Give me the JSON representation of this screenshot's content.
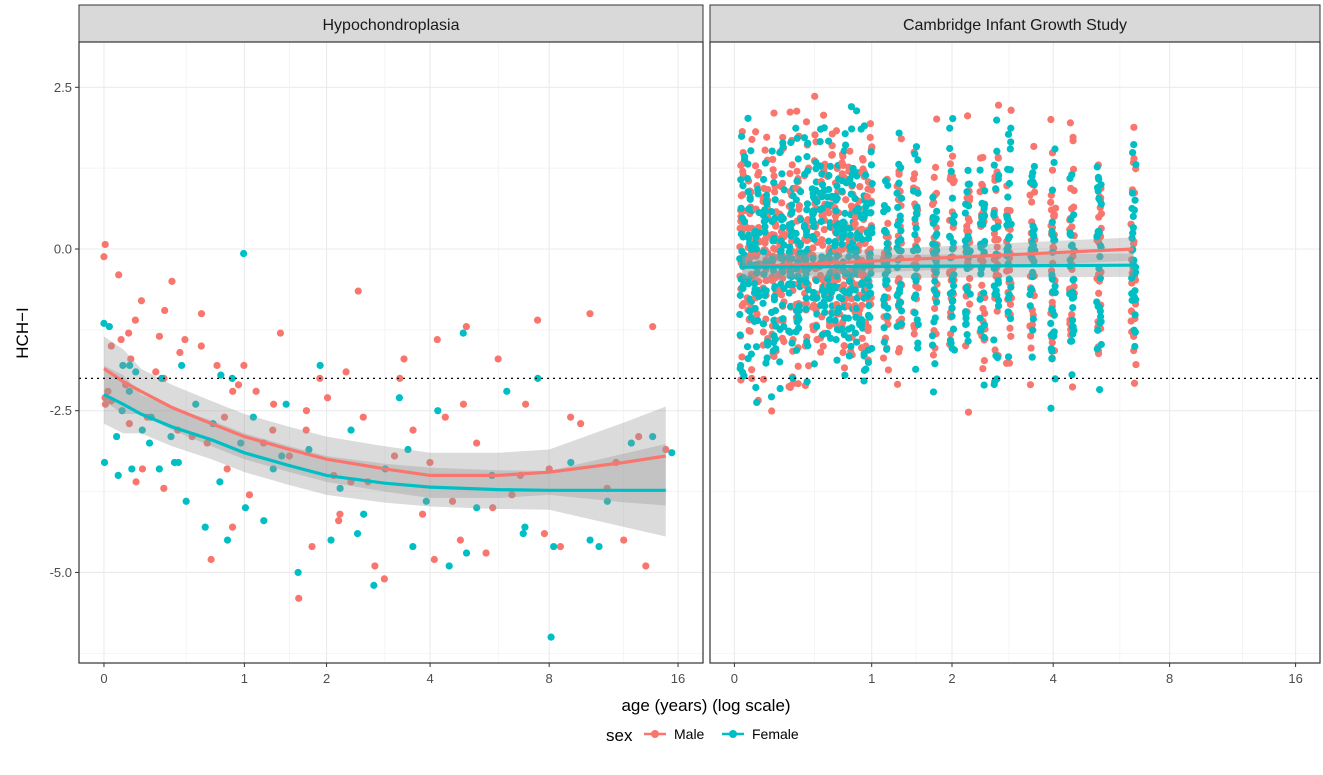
{
  "chart_data": {
    "type": "scatter",
    "xlabel": "age (years) (log scale)",
    "ylabel": "HCH−I",
    "x_scale": "log",
    "x_ticks": [
      0,
      1,
      2,
      4,
      8,
      16
    ],
    "x_tick_labels": [
      "0",
      "1",
      "2",
      "4",
      "8",
      "16"
    ],
    "y_ticks": [
      2.5,
      0.0,
      -2.5,
      -5.0
    ],
    "y_tick_labels": [
      "2.5",
      "0.0",
      "-2.5",
      "-5.0"
    ],
    "ylim": [
      -6.4,
      3.2
    ],
    "reference_line_y": -2,
    "grid": true,
    "legend": {
      "title": "sex",
      "placement": "bottom",
      "entries": [
        {
          "label": "Male",
          "color": "#F8766D"
        },
        {
          "label": "Female",
          "color": "#00BFC4"
        }
      ]
    },
    "panels": [
      {
        "title": "Hypochondroplasia",
        "smooth": [
          {
            "name": "Male",
            "color": "#F8766D",
            "x": [
              0,
              0.1,
              0.2,
              0.4,
              0.7,
              1,
              1.5,
              2,
              3,
              4,
              6,
              8,
              12,
              15
            ],
            "y": [
              -1.85,
              -2.05,
              -2.2,
              -2.45,
              -2.7,
              -2.9,
              -3.1,
              -3.25,
              -3.4,
              -3.5,
              -3.5,
              -3.45,
              -3.3,
              -3.2
            ]
          },
          {
            "name": "Female",
            "color": "#00BFC4",
            "x": [
              0,
              0.1,
              0.2,
              0.4,
              0.7,
              1,
              1.5,
              2,
              3,
              4,
              6,
              8,
              12,
              15
            ],
            "y": [
              -2.25,
              -2.4,
              -2.55,
              -2.75,
              -2.95,
              -3.15,
              -3.35,
              -3.5,
              -3.62,
              -3.68,
              -3.72,
              -3.73,
              -3.73,
              -3.73
            ]
          }
        ],
        "points": [
          {
            "sex": "Male",
            "x": [
              0,
              0,
              0,
              0,
              0,
              0.03,
              0.05,
              0.06,
              0.08,
              0.1,
              0.12,
              0.14,
              0.16,
              0.18,
              0.2,
              0.22,
              0.25,
              0.28,
              0.3,
              0.33,
              0.36,
              0.4,
              0.43,
              0.46,
              0.5,
              0.55,
              0.6,
              0.65,
              0.7,
              0.75,
              0.8,
              0.85,
              0.9,
              0.95,
              1.0,
              1.05,
              1.1,
              1.2,
              1.3,
              1.4,
              1.5,
              1.6,
              1.7,
              1.8,
              1.9,
              2.0,
              2.1,
              2.2,
              2.3,
              2.4,
              2.5,
              2.6,
              2.8,
              3.0,
              3.2,
              3.4,
              3.6,
              3.8,
              4.0,
              4.2,
              4.4,
              4.6,
              4.8,
              5.0,
              5.3,
              5.6,
              6.0,
              6.5,
              7.0,
              7.5,
              8.0,
              8.5,
              9.0,
              10.0,
              11.0,
              12.0,
              13.0,
              14.0,
              15.0,
              0.15,
              0.35,
              0.6,
              0.9,
              1.3,
              1.7,
              2.2,
              2.7,
              3.3,
              4.1,
              4.9,
              5.8,
              6.8,
              7.8,
              9.5,
              11.5,
              13.5
            ],
            "y": [
              0.07,
              -0.12,
              -2.3,
              -2.2,
              -2.4,
              -2.35,
              -1.5,
              -0.4,
              -1.4,
              -2.1,
              -1.3,
              -2.7,
              -3.6,
              -1.1,
              -0.8,
              -3.4,
              -2.6,
              -1.9,
              -1.35,
              -3.7,
              -2.0,
              -0.5,
              -2.8,
              -1.6,
              -1.4,
              -2.9,
              -1.5,
              -3.0,
              -4.8,
              -1.8,
              -2.6,
              -3.4,
              -4.3,
              -2.1,
              -1.8,
              -3.8,
              -2.2,
              -3.0,
              -2.4,
              -1.3,
              -3.2,
              -5.4,
              -2.8,
              -4.6,
              -2.0,
              -2.3,
              -3.5,
              -4.2,
              -1.9,
              -3.6,
              -0.65,
              -2.6,
              -4.9,
              -5.1,
              -3.2,
              -1.7,
              -2.8,
              -4.1,
              -3.3,
              -1.4,
              -2.6,
              -3.9,
              -4.5,
              -1.2,
              -3.0,
              -4.7,
              -1.7,
              -3.8,
              -2.4,
              -1.1,
              -3.4,
              -4.6,
              -2.6,
              -1.0,
              -3.7,
              -4.5,
              -2.9,
              -1.2,
              -3.1,
              -1.7,
              -0.95,
              -1.0,
              -2.2,
              -2.8,
              -2.5,
              -4.1,
              -3.6,
              -2.0,
              -4.8,
              -2.4,
              -4.0,
              -3.5,
              -4.4,
              -2.7,
              -3.3,
              -4.9
            ]
          },
          {
            "sex": "Female",
            "x": [
              0,
              0,
              0.02,
              0.05,
              0.07,
              0.09,
              0.11,
              0.13,
              0.15,
              0.18,
              0.21,
              0.24,
              0.27,
              0.3,
              0.34,
              0.38,
              0.42,
              0.47,
              0.52,
              0.58,
              0.64,
              0.7,
              0.76,
              0.82,
              0.88,
              0.95,
              1.0,
              1.03,
              1.1,
              1.2,
              1.3,
              1.45,
              1.6,
              1.75,
              1.9,
              2.05,
              2.2,
              2.4,
              2.6,
              2.8,
              3.0,
              3.3,
              3.6,
              3.9,
              4.2,
              4.5,
              4.9,
              5.3,
              5.8,
              6.3,
              6.9,
              7.5,
              8.2,
              9.0,
              10.0,
              11.0,
              12.5,
              14.0,
              15.5,
              0.12,
              0.45,
              0.8,
              1.4,
              2.5,
              3.5,
              5.0,
              7.0,
              8.1,
              10.5
            ],
            "y": [
              -1.15,
              -3.3,
              -1.2,
              -2.9,
              -3.5,
              -1.8,
              -2.5,
              -3.4,
              -2.2,
              -1.9,
              -2.8,
              -3.0,
              -2.6,
              -3.4,
              -2.0,
              -2.9,
              -3.3,
              -1.8,
              -3.9,
              -2.4,
              -4.3,
              -2.7,
              -3.6,
              -4.5,
              -2.0,
              -3.0,
              -0.07,
              -4.0,
              -2.6,
              -4.2,
              -3.4,
              -2.4,
              -5.0,
              -3.1,
              -1.8,
              -4.5,
              -3.7,
              -2.8,
              -4.1,
              -5.2,
              -3.4,
              -2.3,
              -4.6,
              -3.9,
              -2.5,
              -4.9,
              -1.3,
              -4.0,
              -3.5,
              -2.2,
              -4.4,
              -2.0,
              -4.6,
              -3.3,
              -4.5,
              -3.9,
              -3.0,
              -2.9,
              -3.15,
              -1.8,
              -3.3,
              -1.95,
              -3.2,
              -4.4,
              -3.1,
              -4.7,
              -4.3,
              -6.0,
              -4.6
            ]
          }
        ]
      },
      {
        "title": "Cambridge Infant Growth Study",
        "smooth": [
          {
            "name": "Male",
            "color": "#F8766D",
            "x": [
              0.04,
              6.5
            ],
            "y": [
              -0.28,
              0.0
            ]
          },
          {
            "name": "Female",
            "color": "#00BFC4",
            "x": [
              0.04,
              6.5
            ],
            "y": [
              -0.28,
              -0.25
            ]
          }
        ],
        "age_columns": [
          0.04,
          0.08,
          0.12,
          0.17,
          0.22,
          0.27,
          0.33,
          0.38,
          0.44,
          0.5,
          0.56,
          0.62,
          0.68,
          0.74,
          0.8,
          0.86,
          0.92,
          0.98,
          1.15,
          1.3,
          1.5,
          1.75,
          2.0,
          2.25,
          2.5,
          2.75,
          3.0,
          3.5,
          4.0,
          4.5,
          5.3,
          6.5
        ],
        "y_range_male": [
          -2.9,
          2.75
        ],
        "y_range_female": [
          -2.8,
          2.55
        ]
      }
    ]
  }
}
